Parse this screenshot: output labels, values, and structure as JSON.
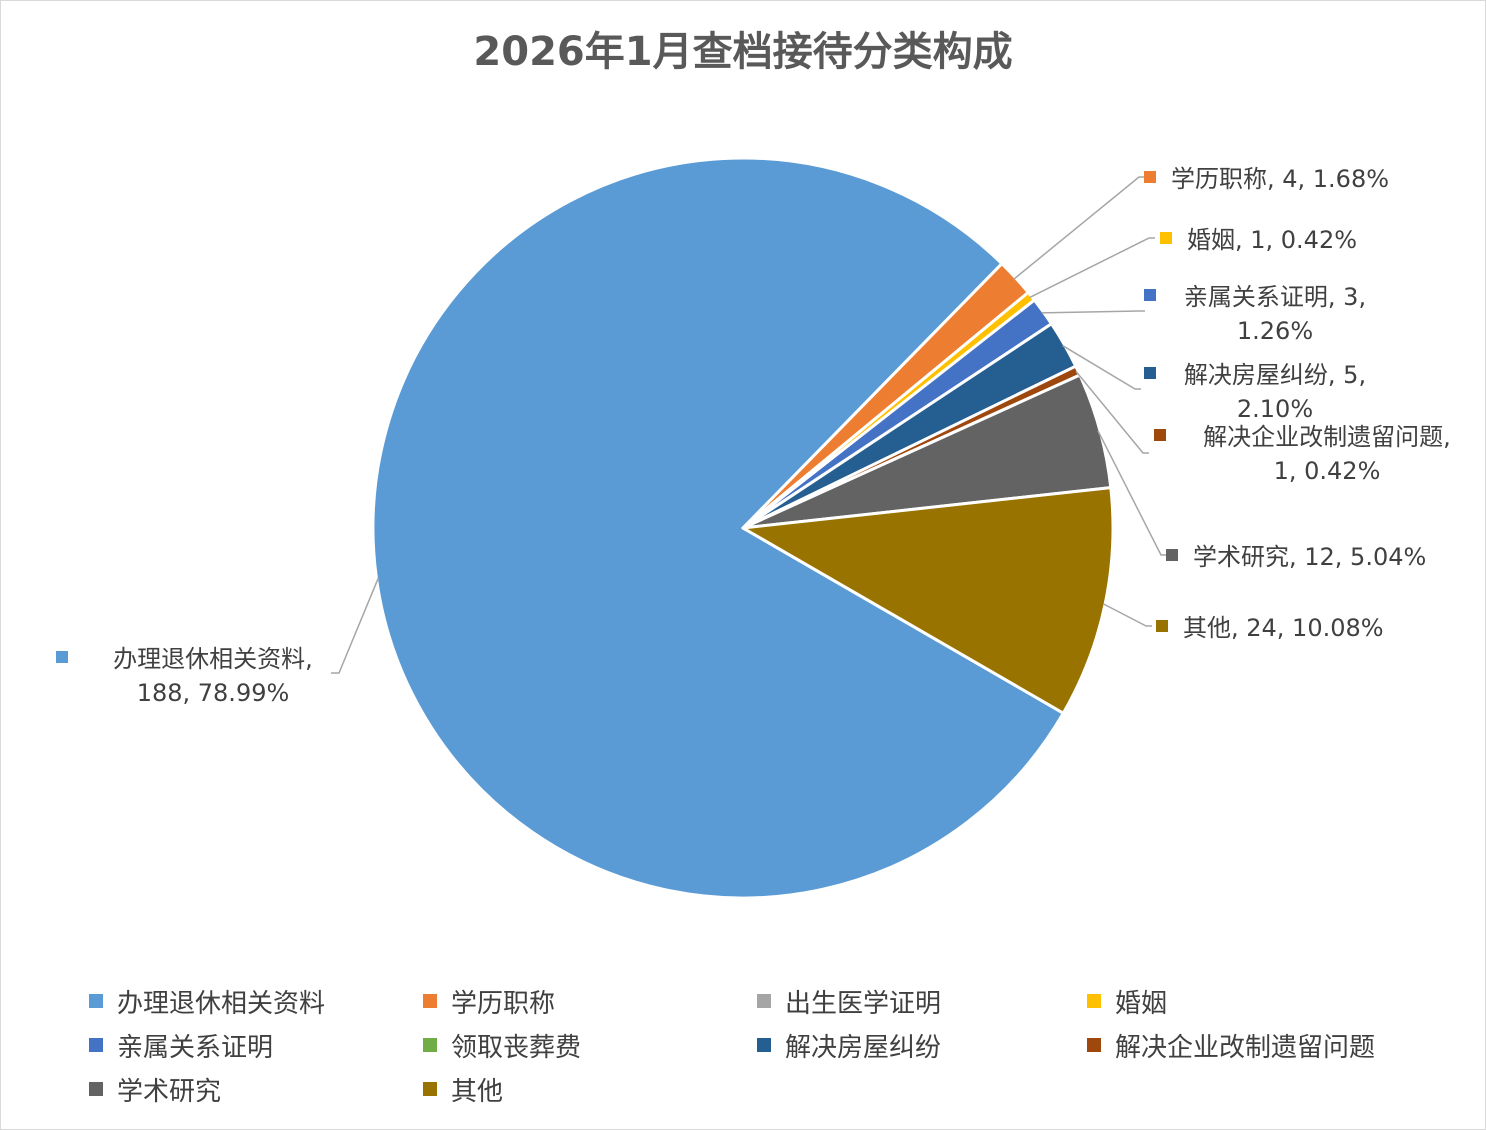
{
  "chart_data": {
    "type": "pie",
    "title": "2026年1月查档接待分类构成",
    "slices": [
      {
        "name": "办理退休相关资料",
        "value": 188,
        "percent": "78.99%",
        "color": "#5b9bd5",
        "label_lines": [
          "办理退休相关资料,",
          "188, 78.99%"
        ]
      },
      {
        "name": "学历职称",
        "value": 4,
        "percent": "1.68%",
        "color": "#ed7d31",
        "label_lines": [
          "学历职称, 4, 1.68%"
        ]
      },
      {
        "name": "出生医学证明",
        "value": 0,
        "percent": "0.00%",
        "color": "#a5a5a5",
        "label_lines": []
      },
      {
        "name": "婚姻",
        "value": 1,
        "percent": "0.42%",
        "color": "#ffc000",
        "label_lines": [
          "婚姻, 1, 0.42%"
        ]
      },
      {
        "name": "亲属关系证明",
        "value": 3,
        "percent": "1.26%",
        "color": "#4472c4",
        "label_lines": [
          "亲属关系证明, 3,",
          "1.26%"
        ]
      },
      {
        "name": "领取丧葬费",
        "value": 0,
        "percent": "0.00%",
        "color": "#70ad47",
        "label_lines": []
      },
      {
        "name": "解决房屋纠纷",
        "value": 5,
        "percent": "2.10%",
        "color": "#255e91",
        "label_lines": [
          "解决房屋纠纷, 5,",
          "2.10%"
        ]
      },
      {
        "name": "解决企业改制遗留问题",
        "value": 1,
        "percent": "0.42%",
        "color": "#9e480e",
        "label_lines": [
          "解决企业改制遗留问题,",
          "1, 0.42%"
        ]
      },
      {
        "name": "学术研究",
        "value": 12,
        "percent": "5.04%",
        "color": "#636363",
        "label_lines": [
          "学术研究, 12, 5.04%"
        ]
      },
      {
        "name": "其他",
        "value": 24,
        "percent": "10.08%",
        "color": "#997300",
        "label_lines": [
          "其他, 24, 10.08%"
        ]
      }
    ],
    "legend_position": "bottom",
    "legend": [
      "办理退休相关资料",
      "学历职称",
      "出生医学证明",
      "婚姻",
      "亲属关系证明",
      "领取丧葬费",
      "解决房屋纠纷",
      "解决企业改制遗留问题",
      "学术研究",
      "其他"
    ]
  }
}
